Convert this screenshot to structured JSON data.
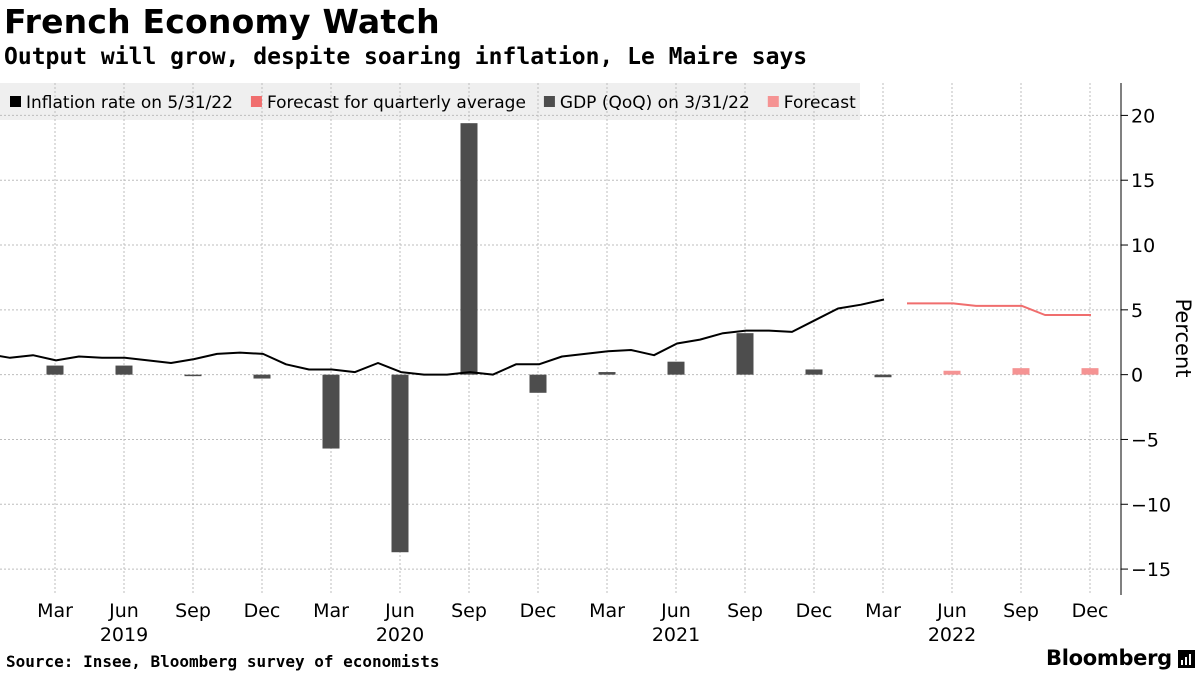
{
  "header": {
    "title": "French Economy Watch",
    "subtitle": "Output will grow, despite soaring inflation, Le Maire says"
  },
  "footer": {
    "source": "Source: Insee, Bloomberg survey of economists",
    "brand": "Bloomberg"
  },
  "colors": {
    "inflation": "#000000",
    "inflation_forecast": "#f06e6e",
    "gdp": "#4d4d4d",
    "gdp_forecast": "#f59393",
    "grid": "#bdbdbd",
    "legend_bg": "#efefef"
  },
  "chart_data": {
    "type": "bar+line",
    "title": "French Economy Watch",
    "subtitle": "Output will grow, despite soaring inflation, Le Maire says",
    "ylabel": "Percent",
    "ylim": [
      -17,
      22.5
    ],
    "yticks": [
      20,
      15,
      10,
      5,
      0,
      -5,
      -10,
      -15
    ],
    "ytick_labels": [
      "20",
      "15",
      "10",
      "5",
      "0",
      "−5",
      "−10",
      "−15"
    ],
    "x_start": "2019-01",
    "x_end": "2022-12",
    "x_ticks": [
      {
        "label": "Mar",
        "month": 2
      },
      {
        "label": "Jun",
        "month": 5
      },
      {
        "label": "Sep",
        "month": 8
      },
      {
        "label": "Dec",
        "month": 11
      },
      {
        "label": "Mar",
        "month": 14
      },
      {
        "label": "Jun",
        "month": 17
      },
      {
        "label": "Sep",
        "month": 20
      },
      {
        "label": "Dec",
        "month": 23
      },
      {
        "label": "Mar",
        "month": 26
      },
      {
        "label": "Jun",
        "month": 29
      },
      {
        "label": "Sep",
        "month": 32
      },
      {
        "label": "Dec",
        "month": 35
      },
      {
        "label": "Mar",
        "month": 38
      },
      {
        "label": "Jun",
        "month": 41
      },
      {
        "label": "Sep",
        "month": 44
      },
      {
        "label": "Dec",
        "month": 47
      }
    ],
    "year_labels": [
      {
        "label": "2019",
        "month": 5
      },
      {
        "label": "2020",
        "month": 17
      },
      {
        "label": "2021",
        "month": 29
      },
      {
        "label": "2022",
        "month": 41
      }
    ],
    "legend": [
      {
        "label": "Inflation rate on 5/31/22",
        "color": "#000000"
      },
      {
        "label": "Forecast for quarterly average",
        "color": "#f06e6e"
      },
      {
        "label": "GDP (QoQ) on 3/31/22",
        "color": "#4d4d4d"
      },
      {
        "label": "Forecast",
        "color": "#f59393"
      }
    ],
    "series": [
      {
        "name": "Inflation rate on 5/31/22",
        "type": "line",
        "start_month": 0,
        "values": [
          1.4,
          1.6,
          1.3,
          1.5,
          1.1,
          1.4,
          1.3,
          1.3,
          1.1,
          0.9,
          1.2,
          1.6,
          1.7,
          1.6,
          0.8,
          0.4,
          0.4,
          0.2,
          0.9,
          0.2,
          0.0,
          0.0,
          0.2,
          0.0,
          0.8,
          0.8,
          1.4,
          1.6,
          1.8,
          1.9,
          1.5,
          2.4,
          2.7,
          3.2,
          3.4,
          3.4,
          3.3,
          4.2,
          5.1,
          5.4,
          5.8
        ]
      },
      {
        "name": "Forecast for quarterly average",
        "type": "step",
        "points": [
          {
            "month": 40,
            "value": 5.5
          },
          {
            "month": 42,
            "value": 5.5
          },
          {
            "month": 43,
            "value": 5.3
          },
          {
            "month": 45,
            "value": 5.3
          },
          {
            "month": 46,
            "value": 4.6
          },
          {
            "month": 48,
            "value": 4.6
          }
        ]
      },
      {
        "name": "GDP (QoQ) on 3/31/22",
        "type": "bar",
        "points": [
          {
            "month": 2,
            "value": 0.7
          },
          {
            "month": 5,
            "value": 0.7
          },
          {
            "month": 8,
            "value": -0.1
          },
          {
            "month": 11,
            "value": -0.3
          },
          {
            "month": 14,
            "value": -5.7
          },
          {
            "month": 17,
            "value": -13.7
          },
          {
            "month": 20,
            "value": 19.4
          },
          {
            "month": 23,
            "value": -1.4
          },
          {
            "month": 26,
            "value": 0.2
          },
          {
            "month": 29,
            "value": 1.0
          },
          {
            "month": 32,
            "value": 3.2
          },
          {
            "month": 35,
            "value": 0.4
          },
          {
            "month": 38,
            "value": -0.2
          }
        ]
      },
      {
        "name": "Forecast",
        "type": "bar",
        "points": [
          {
            "month": 41,
            "value": 0.3
          },
          {
            "month": 44,
            "value": 0.5
          },
          {
            "month": 47,
            "value": 0.5
          }
        ]
      }
    ]
  }
}
